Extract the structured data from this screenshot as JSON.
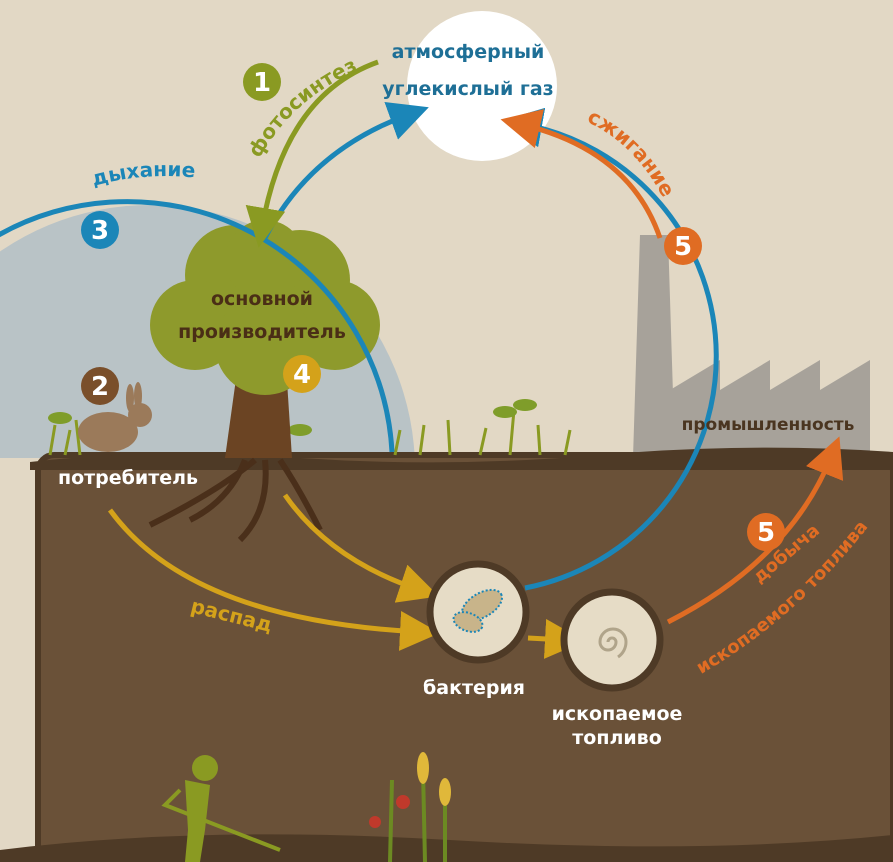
{
  "nodes": [
    {
      "label": [
        "атмосферный",
        "углекислый газ"
      ]
    },
    {
      "label": [
        "основной",
        "производитель"
      ]
    },
    {
      "number": "2",
      "label": [
        "потребитель"
      ]
    },
    {
      "label": [
        "бактерия"
      ]
    },
    {
      "label": [
        "ископаемое",
        "топливо"
      ]
    },
    {
      "label": [
        "промышленность"
      ]
    }
  ],
  "processes": [
    {
      "number": "1",
      "label": "фотосинтез"
    },
    {
      "number": "3",
      "label": "дыхание"
    },
    {
      "number": "4",
      "label": "распад"
    },
    {
      "number": "5",
      "label": "сжигание"
    },
    {
      "number": "5",
      "label": [
        "добыча",
        "ископаемого топлива"
      ]
    }
  ]
}
